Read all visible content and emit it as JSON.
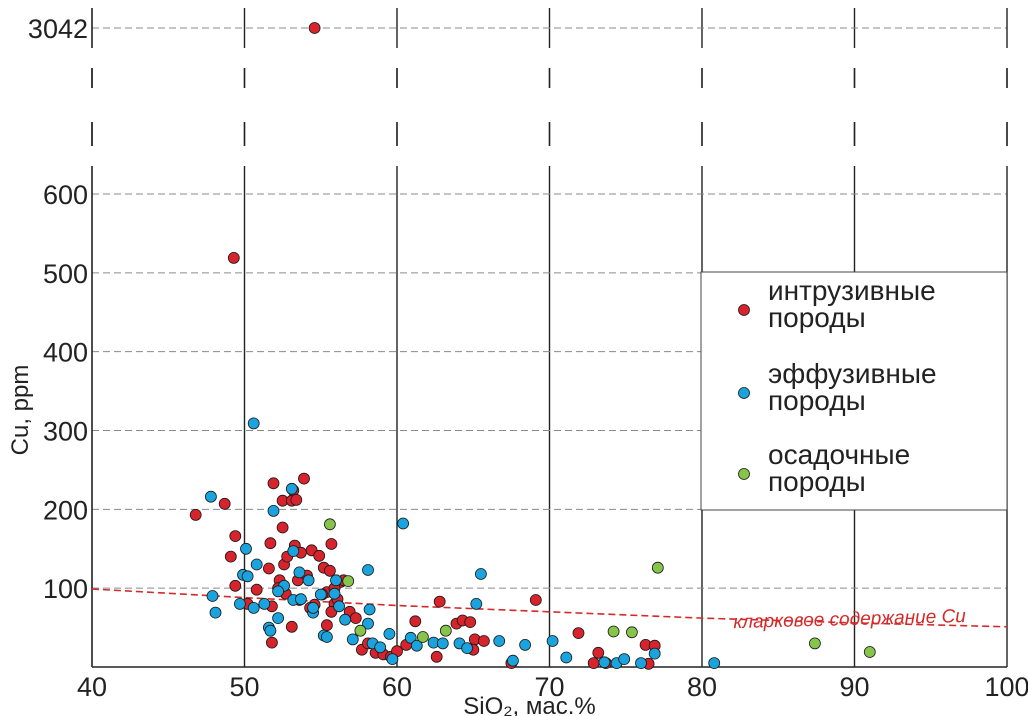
{
  "chart_data": {
    "type": "scatter",
    "xlabel": "SiO₂, мас.%",
    "ylabel": "Cu, ppm",
    "xlim": [
      40,
      100
    ],
    "ylim": [
      0,
      600
    ],
    "y_break": {
      "break_value": 3042
    },
    "x_ticks": [
      40,
      50,
      60,
      70,
      80,
      90,
      100
    ],
    "y_ticks": [
      100,
      200,
      300,
      400,
      500,
      600,
      3042
    ],
    "grid": {
      "x_major": "solid",
      "y_major": "dashed"
    },
    "legend_position": "right",
    "colors": {
      "intrusive": "#d7232b",
      "effusive": "#1aa3dd",
      "sedimentary": "#86c54a",
      "clarke": "#d42a2a"
    },
    "clarke_line": {
      "label": "кларковое содержание Cu",
      "x": [
        40,
        50,
        60,
        70,
        80,
        90,
        100
      ],
      "y": [
        99,
        88,
        78,
        70,
        62,
        56,
        51
      ]
    },
    "series": [
      {
        "name": "интрузивные породы",
        "key": "intrusive",
        "points": [
          [
            54.6,
            3042
          ],
          [
            49.3,
            519
          ],
          [
            46.8,
            193
          ],
          [
            48.7,
            207
          ],
          [
            49.4,
            166
          ],
          [
            49.1,
            140
          ],
          [
            49.4,
            103
          ],
          [
            50.2,
            80
          ],
          [
            50.8,
            98
          ],
          [
            51.7,
            157
          ],
          [
            51.9,
            233
          ],
          [
            52.5,
            177
          ],
          [
            52.3,
            110
          ],
          [
            52.6,
            130
          ],
          [
            52.5,
            211
          ],
          [
            52.7,
            93
          ],
          [
            53.1,
            211
          ],
          [
            53.2,
            224
          ],
          [
            53.3,
            154
          ],
          [
            53.4,
            212
          ],
          [
            53.7,
            145
          ],
          [
            53.9,
            239
          ],
          [
            53.5,
            110
          ],
          [
            54.1,
            116
          ],
          [
            54.4,
            148
          ],
          [
            54.6,
            79
          ],
          [
            54.9,
            141
          ],
          [
            55.2,
            126
          ],
          [
            55.4,
            95
          ],
          [
            55.6,
            122
          ],
          [
            55.7,
            156
          ],
          [
            55.9,
            80
          ],
          [
            56.3,
            108
          ],
          [
            56.5,
            110
          ],
          [
            56.1,
            86
          ],
          [
            55.7,
            70
          ],
          [
            55.4,
            53
          ],
          [
            53.1,
            51
          ],
          [
            51.8,
            77
          ],
          [
            51.8,
            31
          ],
          [
            56.9,
            70
          ],
          [
            57.3,
            62
          ],
          [
            57.7,
            22
          ],
          [
            58.1,
            30
          ],
          [
            58.6,
            18
          ],
          [
            59.1,
            16
          ],
          [
            59.6,
            13
          ],
          [
            60.0,
            20
          ],
          [
            60.6,
            28
          ],
          [
            61.2,
            58
          ],
          [
            62.8,
            83
          ],
          [
            62.6,
            13
          ],
          [
            63.9,
            55
          ],
          [
            64.3,
            59
          ],
          [
            64.8,
            57
          ],
          [
            65.1,
            35
          ],
          [
            65.7,
            33
          ],
          [
            65.0,
            22
          ],
          [
            67.5,
            5
          ],
          [
            69.1,
            85
          ],
          [
            71.9,
            43
          ],
          [
            72.9,
            5
          ],
          [
            73.2,
            18
          ],
          [
            73.7,
            5
          ],
          [
            76.3,
            28
          ],
          [
            76.9,
            27
          ],
          [
            76.5,
            4
          ],
          [
            51.6,
            125
          ],
          [
            52.2,
            100
          ],
          [
            55.9,
            100
          ],
          [
            53.6,
            85
          ],
          [
            55.1,
            92
          ],
          [
            52.8,
            140
          ],
          [
            54.3,
            75
          ]
        ]
      },
      {
        "name": "эффузивные породы",
        "key": "effusive",
        "points": [
          [
            47.8,
            216
          ],
          [
            47.9,
            90
          ],
          [
            48.1,
            69
          ],
          [
            49.7,
            80
          ],
          [
            49.9,
            117
          ],
          [
            50.2,
            115
          ],
          [
            50.1,
            150
          ],
          [
            50.6,
            309
          ],
          [
            50.6,
            75
          ],
          [
            50.8,
            130
          ],
          [
            51.3,
            80
          ],
          [
            51.6,
            50
          ],
          [
            51.7,
            46
          ],
          [
            51.9,
            198
          ],
          [
            52.2,
            62
          ],
          [
            52.6,
            103
          ],
          [
            53.1,
            226
          ],
          [
            53.2,
            147
          ],
          [
            53.2,
            85
          ],
          [
            53.7,
            86
          ],
          [
            53.6,
            120
          ],
          [
            54.2,
            110
          ],
          [
            54.5,
            69
          ],
          [
            54.5,
            75
          ],
          [
            55.0,
            92
          ],
          [
            55.2,
            40
          ],
          [
            55.4,
            38
          ],
          [
            55.9,
            93
          ],
          [
            56.0,
            110
          ],
          [
            56.2,
            77
          ],
          [
            56.6,
            60
          ],
          [
            57.1,
            35
          ],
          [
            58.1,
            123
          ],
          [
            58.2,
            73
          ],
          [
            58.1,
            55
          ],
          [
            58.4,
            30
          ],
          [
            58.9,
            25
          ],
          [
            59.5,
            42
          ],
          [
            59.7,
            10
          ],
          [
            60.4,
            182
          ],
          [
            60.9,
            37
          ],
          [
            61.3,
            27
          ],
          [
            62.4,
            31
          ],
          [
            63.0,
            30
          ],
          [
            64.1,
            30
          ],
          [
            64.6,
            24
          ],
          [
            65.2,
            80
          ],
          [
            65.5,
            118
          ],
          [
            66.7,
            33
          ],
          [
            67.6,
            8
          ],
          [
            68.4,
            28
          ],
          [
            70.2,
            33
          ],
          [
            71.1,
            12
          ],
          [
            73.6,
            6
          ],
          [
            74.4,
            5
          ],
          [
            74.9,
            10
          ],
          [
            76.0,
            5
          ],
          [
            76.9,
            17
          ],
          [
            80.8,
            5
          ],
          [
            52.2,
            96
          ]
        ]
      },
      {
        "name": "осадочные породы",
        "key": "sedimentary",
        "points": [
          [
            55.6,
            181
          ],
          [
            56.8,
            109
          ],
          [
            57.6,
            46
          ],
          [
            61.7,
            38
          ],
          [
            63.2,
            46
          ],
          [
            74.2,
            45
          ],
          [
            75.4,
            44
          ],
          [
            77.1,
            126
          ],
          [
            87.4,
            30
          ],
          [
            91.0,
            19
          ]
        ]
      }
    ]
  }
}
